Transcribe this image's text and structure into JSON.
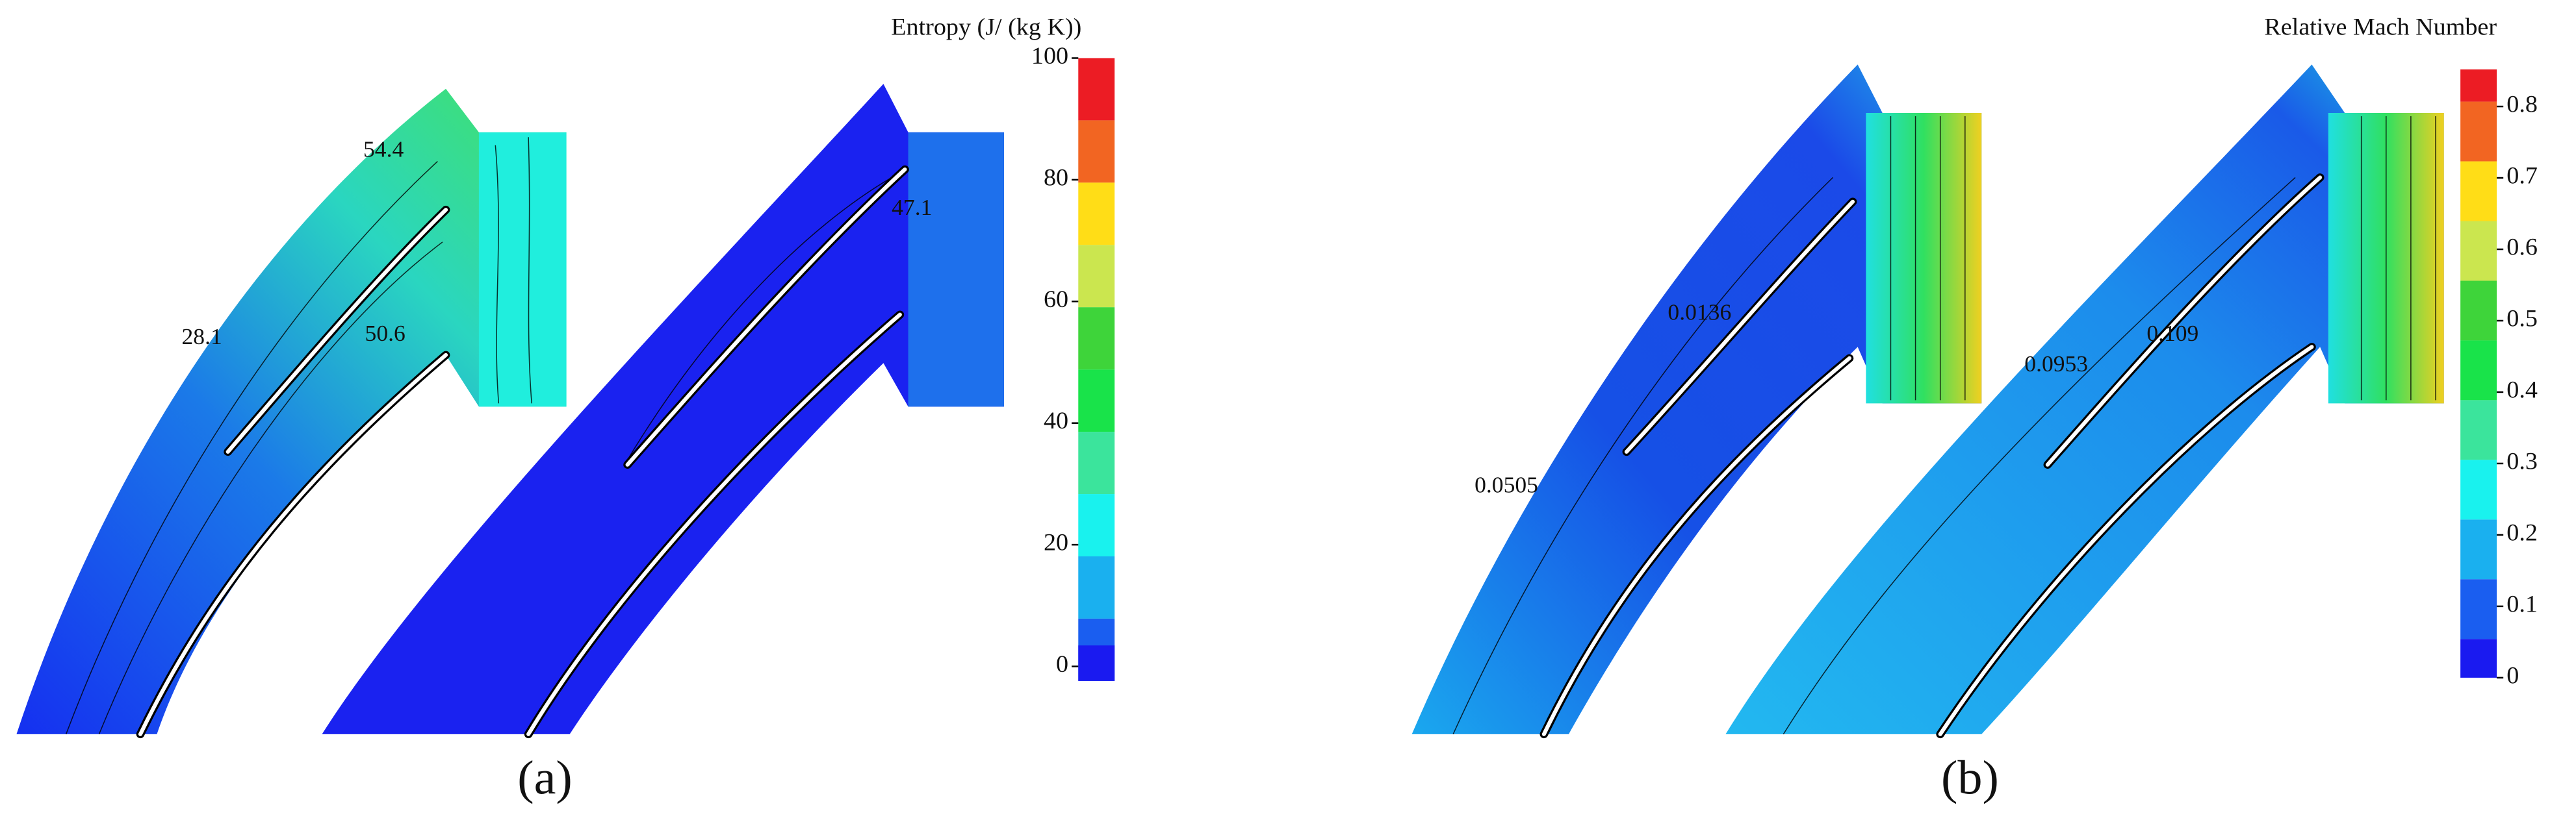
{
  "panels": [
    {
      "label": "(a)",
      "colorbar": {
        "title": "Entropy (J/ (kg K))",
        "ticks": [
          0,
          20,
          40,
          60,
          80,
          100
        ]
      },
      "annotations": [
        "54.4",
        "28.1",
        "50.6",
        "47.1"
      ]
    },
    {
      "label": "(b)",
      "colorbar": {
        "title": "Relative Mach Number",
        "ticks": [
          0,
          0.1,
          0.2,
          0.3,
          0.4,
          0.5,
          0.6,
          0.7,
          0.8
        ]
      },
      "annotations": [
        "0.0136",
        "0.0505",
        "0.0953",
        "0.109"
      ]
    }
  ]
}
